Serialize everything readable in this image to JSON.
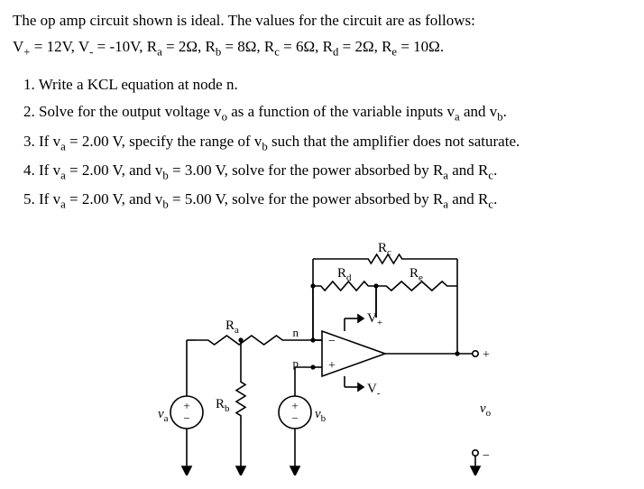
{
  "intro": "The op amp circuit shown is ideal.  The values for the circuit are as follows:",
  "values_html": "V<sub>+</sub> = 12V, V<sub>-</sub> = -10V, R<sub>a</sub> = 2Ω, R<sub>b</sub> = 8Ω, R<sub>c</sub> = 6Ω, R<sub>d</sub> = 2Ω, R<sub>e</sub> = 10Ω.",
  "questions": [
    "1. Write a KCL equation at node n.",
    "2. Solve for the output voltage v<sub>o</sub> as a function of the variable inputs v<sub>a</sub> and v<sub>b</sub>.",
    "3. If v<sub>a</sub> = 2.00 V, specify the range of v<sub>b</sub> such that the amplifier does not saturate.",
    "4. If v<sub>a</sub> = 2.00 V, and v<sub>b</sub> = 3.00 V, solve for the power absorbed by R<sub>a</sub> and R<sub>c</sub>.",
    "5. If v<sub>a</sub> = 2.00 V, and v<sub>b</sub> = 5.00 V, solve for the power absorbed by R<sub>a</sub> and R<sub>c</sub>."
  ],
  "circuit": {
    "labels": {
      "Rc": "R",
      "Rc_sub": "c",
      "Rd": "R",
      "Rd_sub": "d",
      "Re": "R",
      "Re_sub": "e",
      "Ra": "R",
      "Ra_sub": "a",
      "Rb": "R",
      "Rb_sub": "b",
      "Vplus": "V",
      "Vplus_sub": "+",
      "Vminus": "V",
      "Vminus_sub": "-",
      "n": "n",
      "p": "p",
      "va": "v",
      "va_sub": "a",
      "vb": "v",
      "vb_sub": "b",
      "vo": "v",
      "vo_sub": "o",
      "plus": "+",
      "minus": "−"
    },
    "colors": {
      "wire": "#000000",
      "fill": "#ffffff",
      "label": "#000000",
      "nodefill": "#000000"
    },
    "stroke_width": 1.6,
    "font_family": "Times New Roman, serif",
    "font_size": 15,
    "sub_size": 11
  }
}
